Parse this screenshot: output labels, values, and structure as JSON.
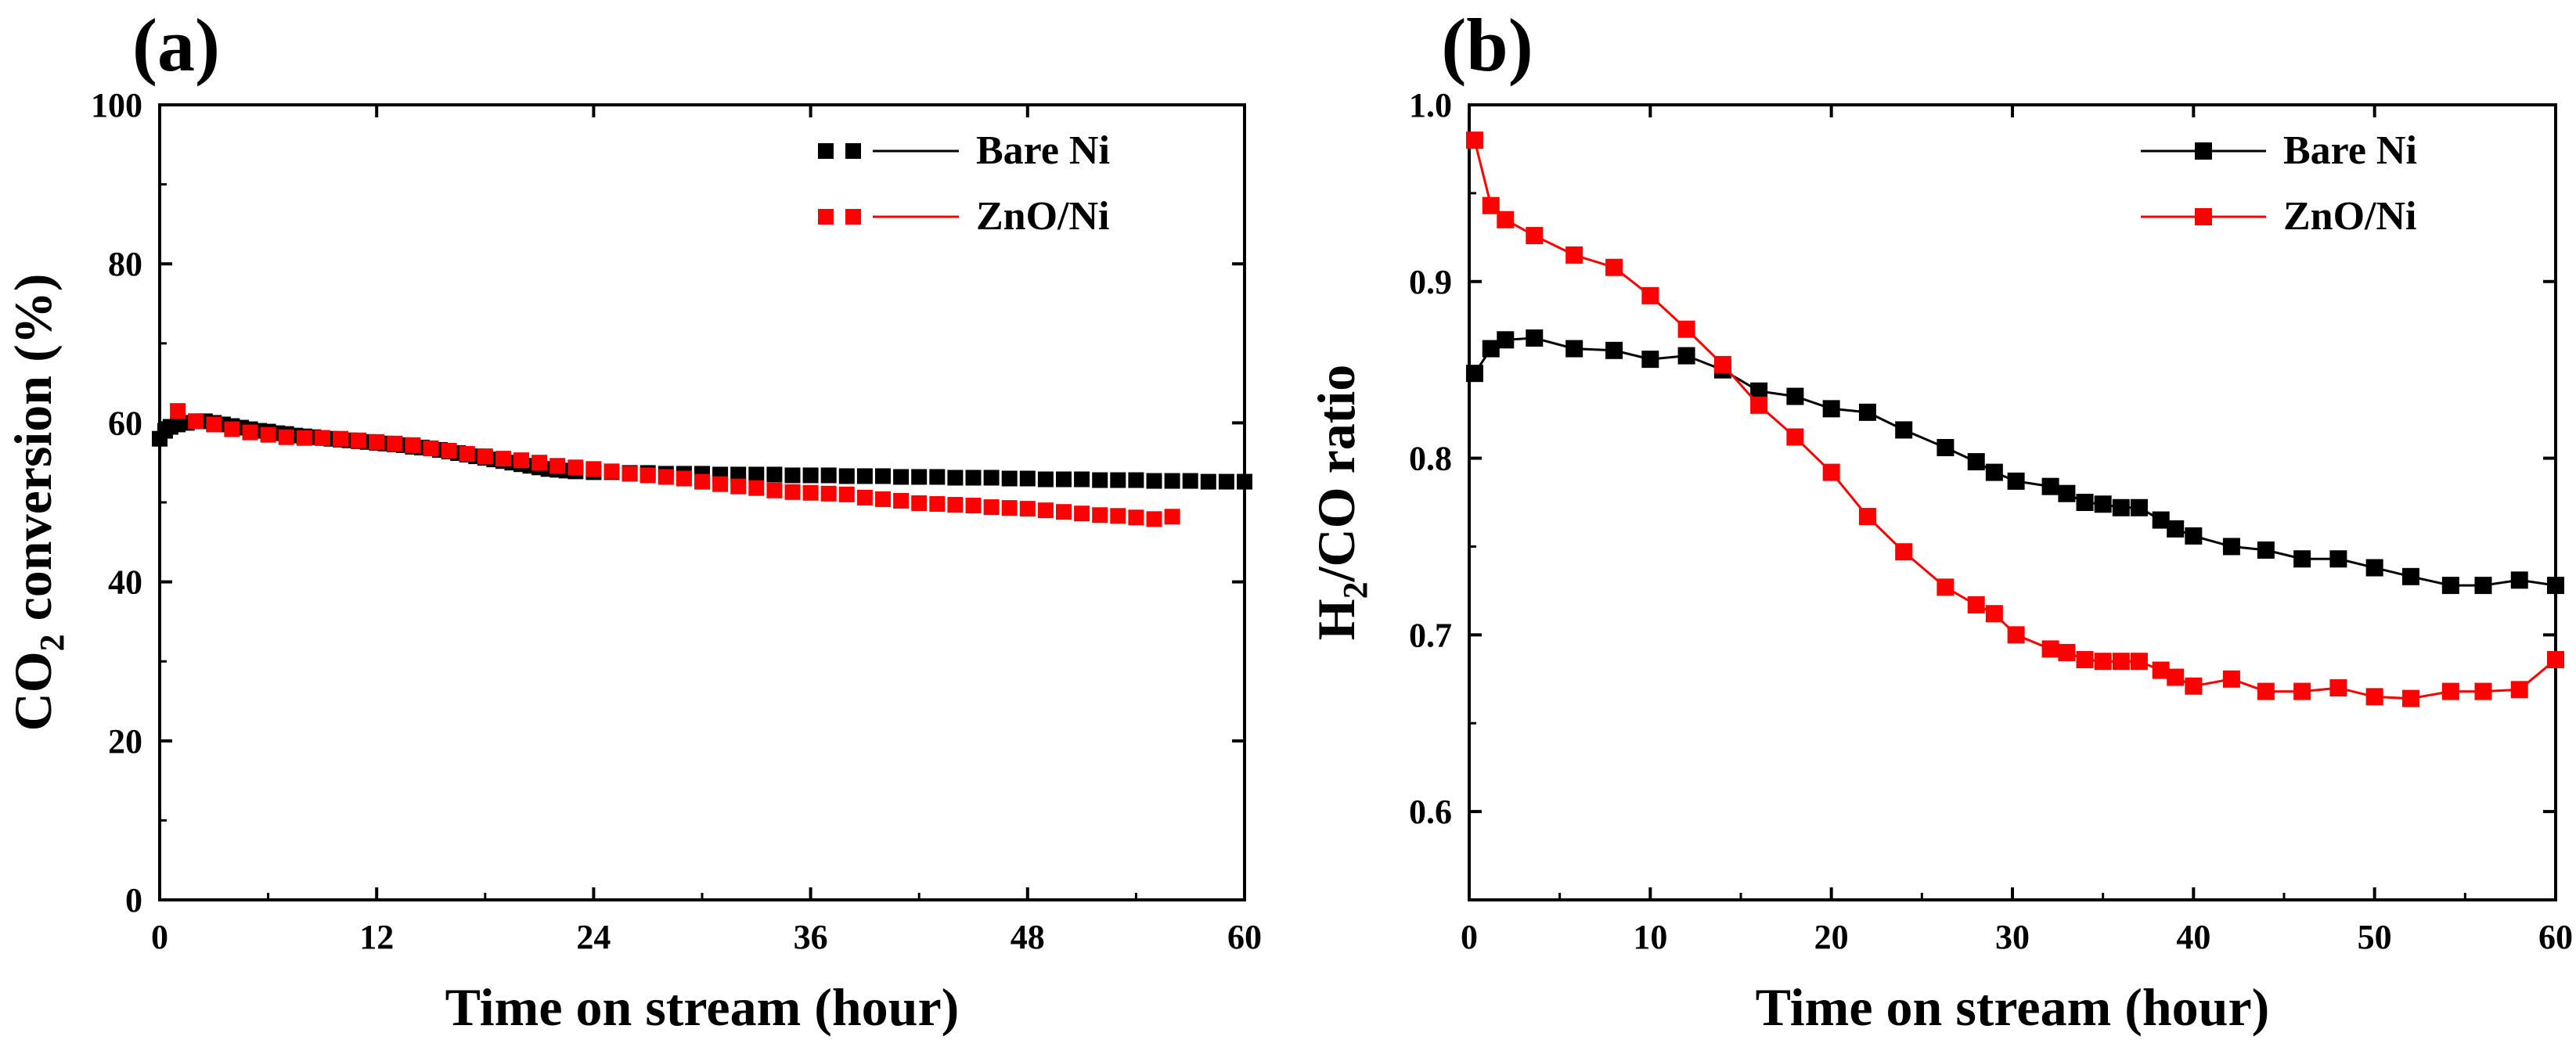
{
  "chart_data": [
    {
      "panel_label": "(a)",
      "type": "scatter",
      "title": "",
      "xlabel": "Time on stream (hour)",
      "ylabel_main": "CO",
      "ylabel_sub": "2",
      "ylabel_rest": " conversion (%)",
      "xlim": [
        0,
        60
      ],
      "ylim": [
        0,
        100
      ],
      "xticks": [
        0,
        12,
        24,
        36,
        48,
        60
      ],
      "yticks": [
        0,
        20,
        40,
        60,
        80,
        100
      ],
      "grid": false,
      "legend_position": "top-right",
      "series": [
        {
          "name": "Bare Ni",
          "color": "#000000",
          "marker": "square",
          "line": false,
          "points": [
            [
              0,
              58
            ],
            [
              0.3,
              59
            ],
            [
              0.6,
              59.5
            ],
            [
              1,
              59.8
            ],
            [
              1.5,
              60
            ],
            [
              2,
              60.2
            ],
            [
              2.5,
              60.2
            ],
            [
              3,
              60
            ],
            [
              3.5,
              59.8
            ],
            [
              4,
              59.6
            ],
            [
              4.5,
              59.4
            ],
            [
              5,
              59.2
            ],
            [
              5.5,
              59
            ],
            [
              6,
              58.9
            ],
            [
              6.5,
              58.7
            ],
            [
              7,
              58.6
            ],
            [
              7.5,
              58.4
            ],
            [
              8,
              58.3
            ],
            [
              8.5,
              58.2
            ],
            [
              9,
              58.1
            ],
            [
              9.5,
              58
            ],
            [
              10,
              57.9
            ],
            [
              10.5,
              57.8
            ],
            [
              11,
              57.7
            ],
            [
              11.5,
              57.6
            ],
            [
              12,
              57.5
            ],
            [
              12.5,
              57.4
            ],
            [
              13,
              57.3
            ],
            [
              13.5,
              57.2
            ],
            [
              14,
              57
            ],
            [
              14.5,
              56.9
            ],
            [
              15,
              56.8
            ],
            [
              15.5,
              56.6
            ],
            [
              16,
              56.4
            ],
            [
              16.5,
              56.2
            ],
            [
              17,
              56
            ],
            [
              17.5,
              55.8
            ],
            [
              18,
              55.6
            ],
            [
              18.5,
              55.4
            ],
            [
              19,
              55.2
            ],
            [
              19.5,
              55
            ],
            [
              20,
              54.8
            ],
            [
              20.5,
              54.6
            ],
            [
              21,
              54.4
            ],
            [
              21.5,
              54.2
            ],
            [
              22,
              54.1
            ],
            [
              22.5,
              54
            ],
            [
              23,
              53.9
            ],
            [
              24,
              53.8
            ],
            [
              25,
              53.8
            ],
            [
              26,
              53.7
            ],
            [
              27,
              53.7
            ],
            [
              28,
              53.6
            ],
            [
              29,
              53.6
            ],
            [
              30,
              53.6
            ],
            [
              31,
              53.5
            ],
            [
              32,
              53.5
            ],
            [
              33,
              53.5
            ],
            [
              34,
              53.5
            ],
            [
              35,
              53.4
            ],
            [
              36,
              53.4
            ],
            [
              37,
              53.4
            ],
            [
              38,
              53.3
            ],
            [
              39,
              53.3
            ],
            [
              40,
              53.3
            ],
            [
              41,
              53.2
            ],
            [
              42,
              53.2
            ],
            [
              43,
              53.2
            ],
            [
              44,
              53.1
            ],
            [
              45,
              53.1
            ],
            [
              46,
              53.1
            ],
            [
              47,
              53
            ],
            [
              48,
              53
            ],
            [
              49,
              52.9
            ],
            [
              50,
              52.9
            ],
            [
              51,
              52.9
            ],
            [
              52,
              52.8
            ],
            [
              53,
              52.8
            ],
            [
              54,
              52.8
            ],
            [
              55,
              52.7
            ],
            [
              56,
              52.7
            ],
            [
              57,
              52.7
            ],
            [
              58,
              52.6
            ],
            [
              59,
              52.6
            ],
            [
              60,
              52.6
            ]
          ]
        },
        {
          "name": "ZnO/Ni",
          "color": "#ff0000",
          "marker": "square",
          "line": false,
          "points": [
            [
              1,
              61.5
            ],
            [
              2,
              60.2
            ],
            [
              3,
              59.8
            ],
            [
              4,
              59.2
            ],
            [
              5,
              58.8
            ],
            [
              6,
              58.5
            ],
            [
              7,
              58.2
            ],
            [
              8,
              58.1
            ],
            [
              9,
              58.1
            ],
            [
              10,
              58
            ],
            [
              11,
              57.8
            ],
            [
              12,
              57.6
            ],
            [
              13,
              57.4
            ],
            [
              14,
              57.2
            ],
            [
              15,
              56.8
            ],
            [
              16,
              56.5
            ],
            [
              17,
              56.1
            ],
            [
              18,
              55.8
            ],
            [
              19,
              55.5
            ],
            [
              20,
              55.3
            ],
            [
              21,
              55
            ],
            [
              22,
              54.6
            ],
            [
              23,
              54.4
            ],
            [
              24,
              54.2
            ],
            [
              25,
              53.9
            ],
            [
              26,
              53.6
            ],
            [
              27,
              53.4
            ],
            [
              28,
              53.2
            ],
            [
              29,
              53
            ],
            [
              30,
              52.6
            ],
            [
              31,
              52.3
            ],
            [
              32,
              52
            ],
            [
              33,
              51.8
            ],
            [
              34,
              51.5
            ],
            [
              35,
              51.3
            ],
            [
              36,
              51.2
            ],
            [
              37,
              51.1
            ],
            [
              38,
              51
            ],
            [
              39,
              50.6
            ],
            [
              40,
              50.4
            ],
            [
              41,
              50.2
            ],
            [
              42,
              49.9
            ],
            [
              43,
              49.8
            ],
            [
              44,
              49.7
            ],
            [
              45,
              49.6
            ],
            [
              46,
              49.4
            ],
            [
              47,
              49.3
            ],
            [
              48,
              49.2
            ],
            [
              49,
              49
            ],
            [
              50,
              48.8
            ],
            [
              51,
              48.6
            ],
            [
              52,
              48.4
            ],
            [
              53,
              48.3
            ],
            [
              54,
              48.1
            ],
            [
              55,
              47.9
            ],
            [
              56,
              48.2
            ]
          ]
        }
      ]
    },
    {
      "panel_label": "(b)",
      "type": "line",
      "title": "",
      "xlabel": "Time on stream (hour)",
      "ylabel_main": "H",
      "ylabel_sub": "2",
      "ylabel_rest": "/CO ratio",
      "xlim": [
        0,
        60
      ],
      "ylim": [
        0.55,
        1.0
      ],
      "xticks": [
        0,
        10,
        20,
        30,
        40,
        50,
        60
      ],
      "yticks": [
        0.6,
        0.7,
        0.8,
        0.9,
        1.0
      ],
      "ytick_labels": [
        "0.6",
        "0.7",
        "0.8",
        "0.9",
        "1.0"
      ],
      "grid": false,
      "legend_position": "top-right",
      "series": [
        {
          "name": "Bare Ni",
          "color": "#000000",
          "marker": "square",
          "line": true,
          "points": [
            [
              0.3,
              0.848
            ],
            [
              1.2,
              0.862
            ],
            [
              2,
              0.867
            ],
            [
              3.6,
              0.868
            ],
            [
              5.8,
              0.862
            ],
            [
              8,
              0.861
            ],
            [
              10,
              0.856
            ],
            [
              12,
              0.858
            ],
            [
              14,
              0.85
            ],
            [
              16,
              0.838
            ],
            [
              18,
              0.835
            ],
            [
              20,
              0.828
            ],
            [
              22,
              0.826
            ],
            [
              24,
              0.816
            ],
            [
              26.3,
              0.806
            ],
            [
              28,
              0.798
            ],
            [
              29,
              0.792
            ],
            [
              30.2,
              0.787
            ],
            [
              32.1,
              0.784
            ],
            [
              33,
              0.78
            ],
            [
              34,
              0.775
            ],
            [
              35,
              0.774
            ],
            [
              36,
              0.772
            ],
            [
              37,
              0.772
            ],
            [
              38.2,
              0.765
            ],
            [
              39,
              0.76
            ],
            [
              40,
              0.756
            ],
            [
              42.1,
              0.75
            ],
            [
              44,
              0.748
            ],
            [
              46,
              0.743
            ],
            [
              48,
              0.743
            ],
            [
              50,
              0.738
            ],
            [
              52,
              0.733
            ],
            [
              54.2,
              0.728
            ],
            [
              56,
              0.728
            ],
            [
              58,
              0.731
            ],
            [
              60,
              0.728
            ]
          ]
        },
        {
          "name": "ZnO/Ni",
          "color": "#ff0000",
          "marker": "square",
          "line": true,
          "points": [
            [
              0.3,
              0.98
            ],
            [
              1.2,
              0.943
            ],
            [
              2,
              0.935
            ],
            [
              3.6,
              0.926
            ],
            [
              5.8,
              0.915
            ],
            [
              8,
              0.908
            ],
            [
              10,
              0.892
            ],
            [
              12,
              0.873
            ],
            [
              14,
              0.853
            ],
            [
              16,
              0.83
            ],
            [
              18,
              0.812
            ],
            [
              20,
              0.792
            ],
            [
              22,
              0.767
            ],
            [
              24,
              0.747
            ],
            [
              26.3,
              0.727
            ],
            [
              28,
              0.717
            ],
            [
              29,
              0.712
            ],
            [
              30.2,
              0.7
            ],
            [
              32.1,
              0.692
            ],
            [
              33,
              0.69
            ],
            [
              34,
              0.686
            ],
            [
              35,
              0.685
            ],
            [
              36,
              0.685
            ],
            [
              37,
              0.685
            ],
            [
              38.2,
              0.68
            ],
            [
              39,
              0.676
            ],
            [
              40,
              0.671
            ],
            [
              42.1,
              0.675
            ],
            [
              44,
              0.668
            ],
            [
              46,
              0.668
            ],
            [
              48,
              0.67
            ],
            [
              50,
              0.665
            ],
            [
              52,
              0.664
            ],
            [
              54.2,
              0.668
            ],
            [
              56,
              0.668
            ],
            [
              58,
              0.669
            ],
            [
              60,
              0.686
            ]
          ]
        }
      ]
    }
  ]
}
